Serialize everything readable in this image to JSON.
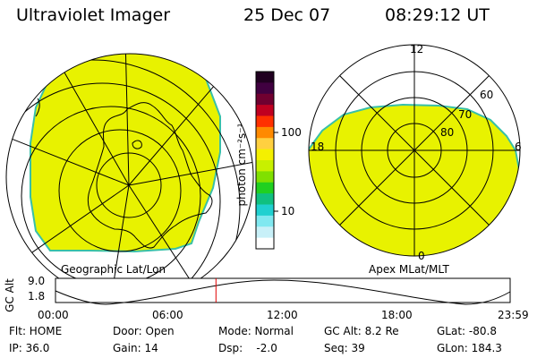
{
  "header": {
    "instrument": "Ultraviolet Imager",
    "date": "25 Dec 07",
    "time": "08:29:12 UT"
  },
  "colors": {
    "aurora_fill": "#e8f200",
    "limb_edge": "#38c0a8",
    "outline": "#000000"
  },
  "left_panel": {
    "label": "Geographic Lat/Lon"
  },
  "right_panel": {
    "label": "Apex MLat/MLT",
    "mlt_labels": {
      "top": "12",
      "left": "18",
      "right": "6",
      "bottom": "0"
    },
    "mlat_labels": [
      "60",
      "70",
      "80"
    ]
  },
  "colorbar": {
    "unit_label": "photon cm⁻²s⁻¹",
    "ticks": [
      "100",
      "10"
    ],
    "colors_top_to_bottom": [
      "#200020",
      "#400040",
      "#700030",
      "#c00020",
      "#ff3000",
      "#ff8a00",
      "#ffd040",
      "#f4f000",
      "#c8f000",
      "#80e000",
      "#20d020",
      "#10c080",
      "#20d0d0",
      "#80e8f0",
      "#c8f0f8",
      "#ffffff"
    ]
  },
  "timeline": {
    "axis_title": "GC Alt",
    "y_ticks": [
      "9.0",
      "1.8"
    ],
    "x_ticks": [
      "00:00",
      "06:00",
      "12:00",
      "18:00",
      "23:59"
    ],
    "current_time_fraction": 0.353,
    "marker_color": "#e00000"
  },
  "status": {
    "row1": [
      {
        "label": "Flt: HOME"
      },
      {
        "label": "Door: Open"
      },
      {
        "label": "Mode: Normal"
      },
      {
        "label": "GC Alt: 8.2 Re"
      },
      {
        "label": "GLat: -80.8"
      }
    ],
    "row2": [
      {
        "label": "IP: 36.0"
      },
      {
        "label": "Gain: 14"
      },
      {
        "label": "Dsp:    -2.0"
      },
      {
        "label": "Seq: 39"
      },
      {
        "label": "GLon: 184.3"
      }
    ]
  }
}
